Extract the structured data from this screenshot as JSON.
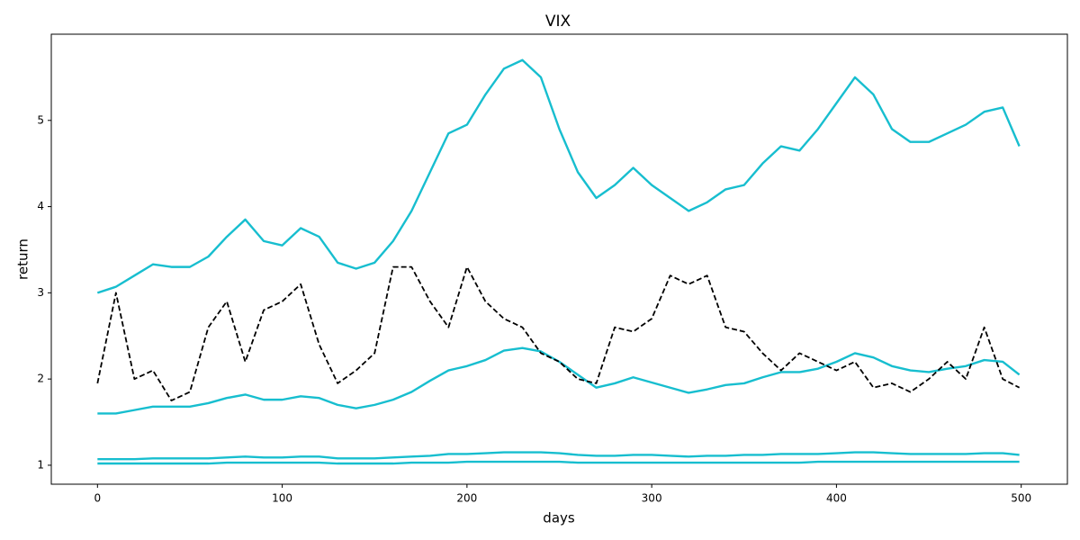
{
  "chart_data": {
    "type": "line",
    "title": "VIX",
    "x_label": "days",
    "y_label": "return",
    "x": [
      0,
      10,
      20,
      30,
      40,
      50,
      60,
      70,
      80,
      90,
      100,
      110,
      120,
      130,
      140,
      150,
      160,
      170,
      180,
      190,
      200,
      210,
      220,
      230,
      240,
      250,
      260,
      270,
      280,
      290,
      300,
      310,
      320,
      330,
      340,
      350,
      360,
      370,
      380,
      390,
      400,
      410,
      420,
      430,
      440,
      450,
      460,
      470,
      480,
      490,
      499
    ],
    "xlim": [
      -25,
      525
    ],
    "xticks": [
      0,
      100,
      200,
      300,
      400,
      500
    ],
    "ylim": [
      0.78,
      6.0
    ],
    "yticks": [
      1,
      2,
      3,
      4,
      5
    ],
    "series": [
      {
        "color": "#17becf",
        "linestyle": "solid",
        "values": [
          3.0,
          3.07,
          3.2,
          3.33,
          3.3,
          3.3,
          3.42,
          3.65,
          3.85,
          3.6,
          3.55,
          3.75,
          3.65,
          3.35,
          3.28,
          3.35,
          3.6,
          3.95,
          4.4,
          4.85,
          4.95,
          5.3,
          5.6,
          5.7,
          5.5,
          4.9,
          4.4,
          4.1,
          4.25,
          4.45,
          4.25,
          4.1,
          3.95,
          4.05,
          4.2,
          4.25,
          4.5,
          4.7,
          4.65,
          4.9,
          5.2,
          5.5,
          5.3,
          4.9,
          4.75,
          4.75,
          4.85,
          4.95,
          5.1,
          5.15,
          4.7
        ]
      },
      {
        "color": "#17becf",
        "linestyle": "solid",
        "values": [
          1.6,
          1.6,
          1.64,
          1.68,
          1.68,
          1.68,
          1.72,
          1.78,
          1.82,
          1.76,
          1.76,
          1.8,
          1.78,
          1.7,
          1.66,
          1.7,
          1.76,
          1.85,
          1.98,
          2.1,
          2.15,
          2.22,
          2.33,
          2.36,
          2.32,
          2.2,
          2.05,
          1.9,
          1.95,
          2.02,
          1.96,
          1.9,
          1.84,
          1.88,
          1.93,
          1.95,
          2.02,
          2.08,
          2.08,
          2.12,
          2.2,
          2.3,
          2.25,
          2.15,
          2.1,
          2.08,
          2.12,
          2.15,
          2.22,
          2.2,
          2.05
        ]
      },
      {
        "color": "#17becf",
        "linestyle": "solid",
        "values": [
          1.07,
          1.07,
          1.07,
          1.08,
          1.08,
          1.08,
          1.08,
          1.09,
          1.1,
          1.09,
          1.09,
          1.1,
          1.1,
          1.08,
          1.08,
          1.08,
          1.09,
          1.1,
          1.11,
          1.13,
          1.13,
          1.14,
          1.15,
          1.15,
          1.15,
          1.14,
          1.12,
          1.11,
          1.11,
          1.12,
          1.12,
          1.11,
          1.1,
          1.11,
          1.11,
          1.12,
          1.12,
          1.13,
          1.13,
          1.13,
          1.14,
          1.15,
          1.15,
          1.14,
          1.13,
          1.13,
          1.13,
          1.13,
          1.14,
          1.14,
          1.12
        ]
      },
      {
        "color": "#17becf",
        "linestyle": "solid",
        "values": [
          1.02,
          1.02,
          1.02,
          1.02,
          1.02,
          1.02,
          1.02,
          1.03,
          1.03,
          1.03,
          1.03,
          1.03,
          1.03,
          1.02,
          1.02,
          1.02,
          1.02,
          1.03,
          1.03,
          1.03,
          1.04,
          1.04,
          1.04,
          1.04,
          1.04,
          1.04,
          1.03,
          1.03,
          1.03,
          1.03,
          1.03,
          1.03,
          1.03,
          1.03,
          1.03,
          1.03,
          1.03,
          1.03,
          1.03,
          1.04,
          1.04,
          1.04,
          1.04,
          1.04,
          1.04,
          1.04,
          1.04,
          1.04,
          1.04,
          1.04,
          1.04
        ]
      },
      {
        "color": "#000000",
        "linestyle": "dashed",
        "values": [
          1.95,
          3.0,
          2.0,
          2.1,
          1.75,
          1.85,
          2.6,
          2.9,
          2.2,
          2.8,
          2.9,
          3.1,
          2.4,
          1.95,
          2.1,
          2.3,
          3.3,
          3.3,
          2.9,
          2.6,
          3.3,
          2.9,
          2.7,
          2.6,
          2.3,
          2.2,
          2.0,
          1.95,
          2.6,
          2.55,
          2.7,
          3.2,
          3.1,
          3.2,
          2.6,
          2.55,
          2.3,
          2.1,
          2.3,
          2.2,
          2.1,
          2.2,
          1.9,
          1.95,
          1.85,
          2.0,
          2.2,
          2.0,
          2.6,
          2.0,
          1.9
        ]
      }
    ]
  }
}
